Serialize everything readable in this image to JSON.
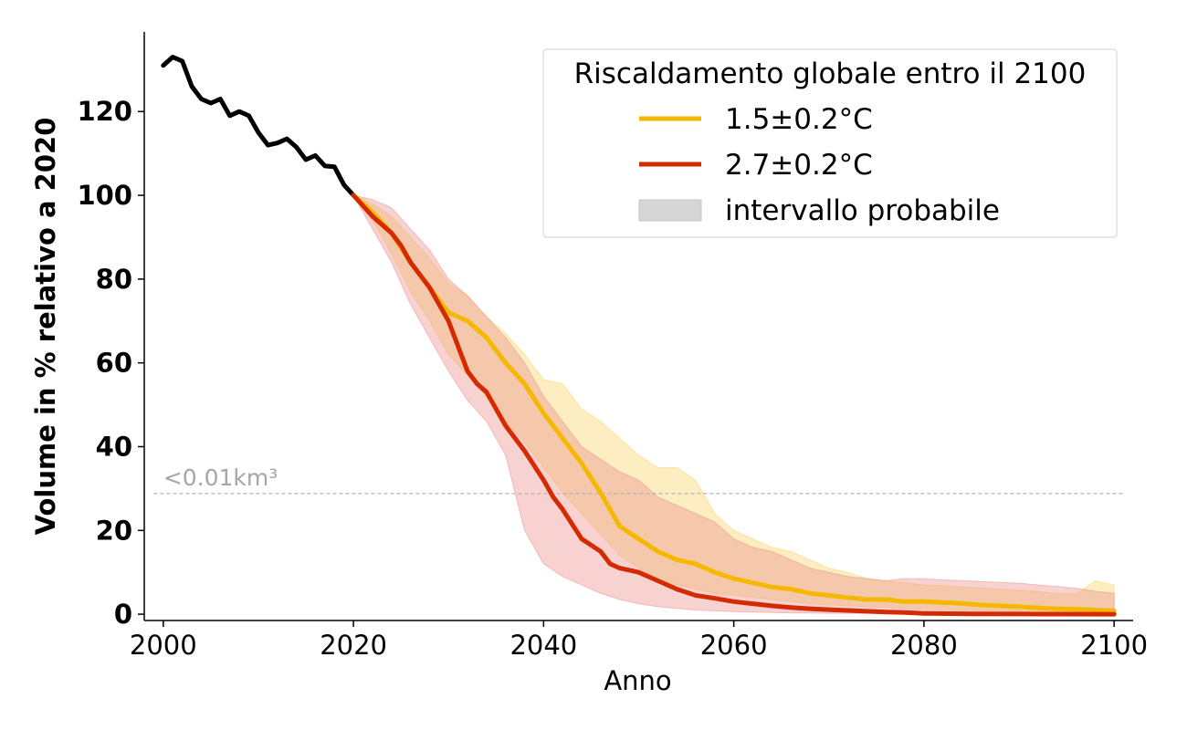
{
  "chart_data": {
    "type": "line",
    "xlabel": "Anno",
    "ylabel": "Volume in % relativo a 2020",
    "xlim": [
      1998,
      2102
    ],
    "ylim": [
      -1.5,
      139
    ],
    "xticks": [
      2000,
      2020,
      2040,
      2060,
      2080,
      2100
    ],
    "yticks": [
      0,
      20,
      40,
      60,
      80,
      100,
      120
    ],
    "grid": false,
    "legend": {
      "position": "top-right",
      "title": "Riscaldamento globale entro il 2100",
      "entries": [
        {
          "label": "1.5±0.2°C",
          "kind": "line",
          "color": "#f5b800"
        },
        {
          "label": "2.7±0.2°C",
          "kind": "line",
          "color": "#d42a00"
        },
        {
          "label": "intervallo probabile",
          "kind": "patch",
          "color": "#d6d6d6"
        }
      ]
    },
    "threshold": {
      "y": 28.8,
      "label": "<0.01km³",
      "color": "#b3b3b3"
    },
    "series": [
      {
        "kind": "line",
        "color": "#000000",
        "x": [
          2000,
          2001,
          2002,
          2003,
          2004,
          2005,
          2006,
          2007,
          2008,
          2009,
          2010,
          2011,
          2012,
          2013,
          2014,
          2015,
          2016,
          2017,
          2018,
          2019,
          2020
        ],
        "y": [
          131,
          133,
          132,
          126,
          123,
          122,
          123,
          119,
          120,
          119,
          115,
          112,
          112.5,
          113.5,
          111.5,
          108.5,
          109.5,
          107,
          106.8,
          102.5,
          100
        ]
      },
      {
        "kind": "line",
        "color": "#f5b800",
        "x": [
          2020,
          2022,
          2024,
          2026,
          2028,
          2030,
          2032,
          2034,
          2036,
          2038,
          2040,
          2042,
          2044,
          2046,
          2048,
          2050,
          2052,
          2054,
          2056,
          2058,
          2060,
          2062,
          2064,
          2066,
          2068,
          2070,
          2072,
          2074,
          2076,
          2078,
          2080,
          2082,
          2084,
          2086,
          2088,
          2090,
          2092,
          2094,
          2096,
          2098,
          2100
        ],
        "y": [
          100,
          96,
          91,
          84,
          78,
          72,
          70,
          66,
          60,
          55,
          48,
          42,
          36,
          29,
          21,
          18,
          15,
          13,
          12,
          10,
          8.5,
          7.5,
          6.5,
          6,
          5,
          4.5,
          4,
          3.5,
          3.5,
          3,
          3,
          2.8,
          2.6,
          2.2,
          2,
          1.8,
          1.5,
          1.3,
          1.2,
          1,
          0.8
        ]
      },
      {
        "kind": "line",
        "color": "#d42a00",
        "x": [
          2020,
          2022,
          2024,
          2025,
          2026,
          2028,
          2030,
          2031,
          2032,
          2033,
          2034,
          2036,
          2038,
          2040,
          2041,
          2042,
          2044,
          2046,
          2047,
          2048,
          2050,
          2052,
          2054,
          2056,
          2058,
          2060,
          2062,
          2064,
          2066,
          2068,
          2070,
          2072,
          2074,
          2076,
          2078,
          2080,
          2085,
          2090,
          2095,
          2100
        ],
        "y": [
          100,
          95,
          91,
          88,
          84,
          78,
          70,
          64,
          58,
          55,
          53,
          45,
          39,
          32,
          28,
          25,
          18,
          15,
          12,
          11,
          10,
          8,
          6,
          4.5,
          3.8,
          3,
          2.5,
          2,
          1.6,
          1.3,
          1.1,
          0.9,
          0.7,
          0.5,
          0.4,
          0.2,
          0.1,
          0.05,
          0.03,
          0.01
        ]
      },
      {
        "kind": "band",
        "color": "#fbd463",
        "x": [
          2020,
          2022,
          2024,
          2026,
          2028,
          2030,
          2032,
          2034,
          2036,
          2038,
          2040,
          2042,
          2044,
          2046,
          2048,
          2050,
          2052,
          2054,
          2056,
          2058,
          2060,
          2062,
          2064,
          2066,
          2068,
          2070,
          2072,
          2074,
          2076,
          2078,
          2080,
          2082,
          2084,
          2086,
          2088,
          2090,
          2092,
          2094,
          2096,
          2098,
          2100
        ],
        "upper": [
          100,
          98,
          95,
          90,
          85,
          79,
          76,
          71,
          67,
          62,
          56,
          55,
          49,
          46,
          42,
          38,
          35,
          35,
          32,
          24,
          20,
          18,
          16,
          15,
          13,
          11,
          10,
          8.5,
          8,
          7.5,
          7,
          6.8,
          6.5,
          6.3,
          6,
          5.7,
          5.4,
          5,
          4.8,
          8,
          7
        ],
        "lower": [
          100,
          94,
          86,
          77,
          70,
          62,
          57,
          52,
          46,
          41,
          35,
          29,
          24,
          19,
          14,
          11,
          8.5,
          7,
          6,
          5,
          4.5,
          4,
          3.5,
          3,
          2.5,
          2.2,
          2,
          1.8,
          1.6,
          1.4,
          1.2,
          1.1,
          1,
          0.9,
          0.8,
          0.7,
          0.6,
          0.6,
          0.5,
          0.5,
          0.4
        ]
      },
      {
        "kind": "band",
        "color": "#ec8f8a",
        "x": [
          2020,
          2022,
          2024,
          2026,
          2028,
          2030,
          2032,
          2034,
          2036,
          2038,
          2040,
          2042,
          2044,
          2046,
          2048,
          2050,
          2052,
          2054,
          2056,
          2058,
          2060,
          2062,
          2064,
          2066,
          2068,
          2070,
          2072,
          2074,
          2076,
          2078,
          2080,
          2082,
          2084,
          2086,
          2088,
          2090,
          2092,
          2094,
          2096,
          2098,
          2100
        ],
        "upper": [
          100,
          99,
          97,
          92,
          87,
          80,
          76,
          71,
          66,
          60,
          52,
          46,
          40,
          37,
          34,
          32,
          28,
          26,
          24,
          22,
          18,
          16,
          15,
          13,
          11,
          10,
          9,
          8.5,
          8,
          8.5,
          8.5,
          8.2,
          8,
          7.8,
          7.6,
          7.4,
          7,
          6.6,
          6.2,
          5.5,
          5
        ],
        "lower": [
          100,
          92,
          84,
          74,
          66,
          58,
          51,
          46,
          38,
          20,
          12,
          9,
          7,
          5,
          3.5,
          2.5,
          1.8,
          1.4,
          1,
          0.8,
          0.6,
          0.5,
          0.4,
          0.3,
          0.3,
          0.2,
          0.2,
          0.2,
          0.2,
          0.2,
          0.2,
          0.2,
          0.2,
          0.2,
          0.2,
          0.2,
          0.2,
          0.2,
          0.2,
          0.2,
          0.2
        ]
      }
    ]
  }
}
